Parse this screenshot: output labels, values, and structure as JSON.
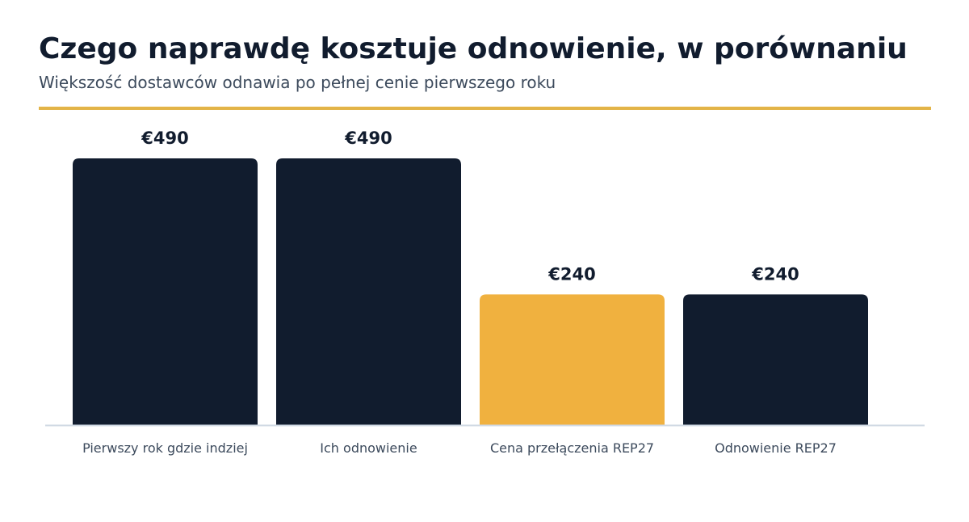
{
  "header": {
    "title": "Czego naprawdę kosztuje odnowienie, w porównaniu",
    "subtitle": "Większość dostawców odnawia po pełnej cenie pierwszego roku"
  },
  "colors": {
    "bar_default": "#111c2e",
    "bar_highlight": "#f0b13f",
    "accent_rule": "#e3b448",
    "baseline": "#cfd8e3"
  },
  "chart_data": {
    "type": "bar",
    "title": "Czego naprawdę kosztuje odnowienie, w porównaniu",
    "subtitle": "Większość dostawców odnawia po pełnej cenie pierwszego roku",
    "categories": [
      "Pierwszy rok gdzie indziej",
      "Ich odnowienie",
      "Cena przełączenia REP27",
      "Odnowienie REP27"
    ],
    "values": [
      490,
      490,
      240,
      240
    ],
    "value_labels": [
      "€490",
      "€490",
      "€240",
      "€240"
    ],
    "highlight_index": 2,
    "unit": "€",
    "ylim": [
      0,
      490
    ],
    "grid": false,
    "legend": "none"
  }
}
